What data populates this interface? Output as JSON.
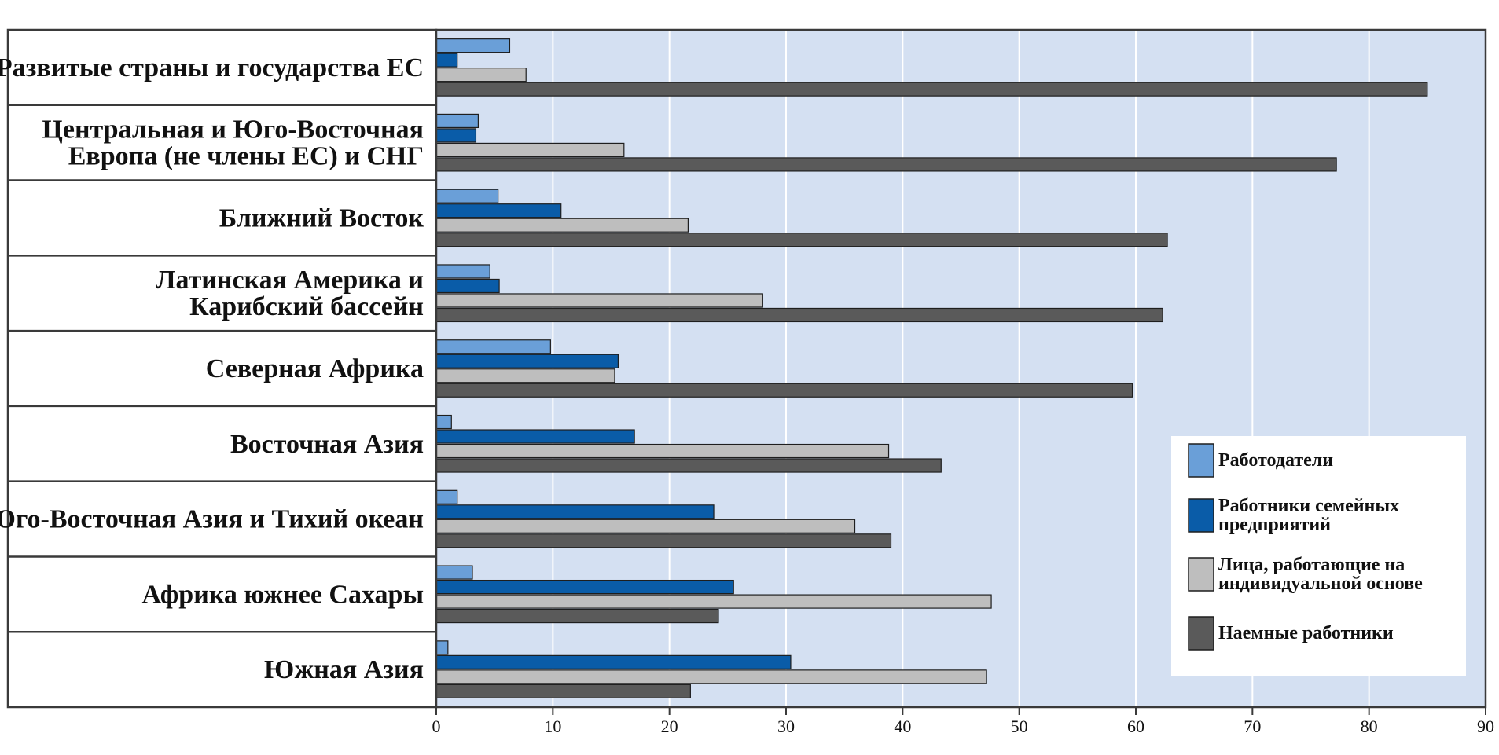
{
  "chart_data": {
    "type": "bar",
    "orientation": "horizontal",
    "title_fragment": "",
    "categories": [
      [
        "Развитые страны и государства ЕС"
      ],
      [
        "Центральная и Юго-Восточная",
        "Европа (не члены ЕС) и СНГ"
      ],
      [
        "Ближний Восток"
      ],
      [
        "Латинская Америка и",
        "Карибский бассейн"
      ],
      [
        "Северная Африка"
      ],
      [
        "Восточная Азия"
      ],
      [
        "Юго-Восточная Азия и Тихий океан"
      ],
      [
        "Африка южнее Сахары"
      ],
      [
        "Южная Азия"
      ]
    ],
    "series": [
      {
        "name": [
          "Работодатели"
        ],
        "color": "#6a9fd8",
        "values": [
          6.3,
          3.6,
          5.3,
          4.6,
          9.8,
          1.3,
          1.8,
          3.1,
          1.0
        ]
      },
      {
        "name": [
          "Работники семейных",
          "предприятий"
        ],
        "color": "#0a5ca8",
        "values": [
          1.8,
          3.4,
          10.7,
          5.4,
          15.6,
          17.0,
          23.8,
          25.5,
          30.4
        ]
      },
      {
        "name": [
          "Лица, работающие на",
          "индивидуальной основе"
        ],
        "color": "#bebebe",
        "values": [
          7.7,
          16.1,
          21.6,
          28.0,
          15.3,
          38.8,
          35.9,
          47.6,
          47.2
        ]
      },
      {
        "name": [
          "Наемные работники"
        ],
        "color": "#5a5a5a",
        "values": [
          85.0,
          77.2,
          62.7,
          62.3,
          59.7,
          43.3,
          39.0,
          24.2,
          21.8
        ]
      }
    ],
    "xlim": [
      0,
      90
    ],
    "xticks": [
      0,
      10,
      20,
      30,
      40,
      50,
      60,
      70,
      80,
      90
    ],
    "grid": true,
    "legend_position": "bottom-right"
  }
}
